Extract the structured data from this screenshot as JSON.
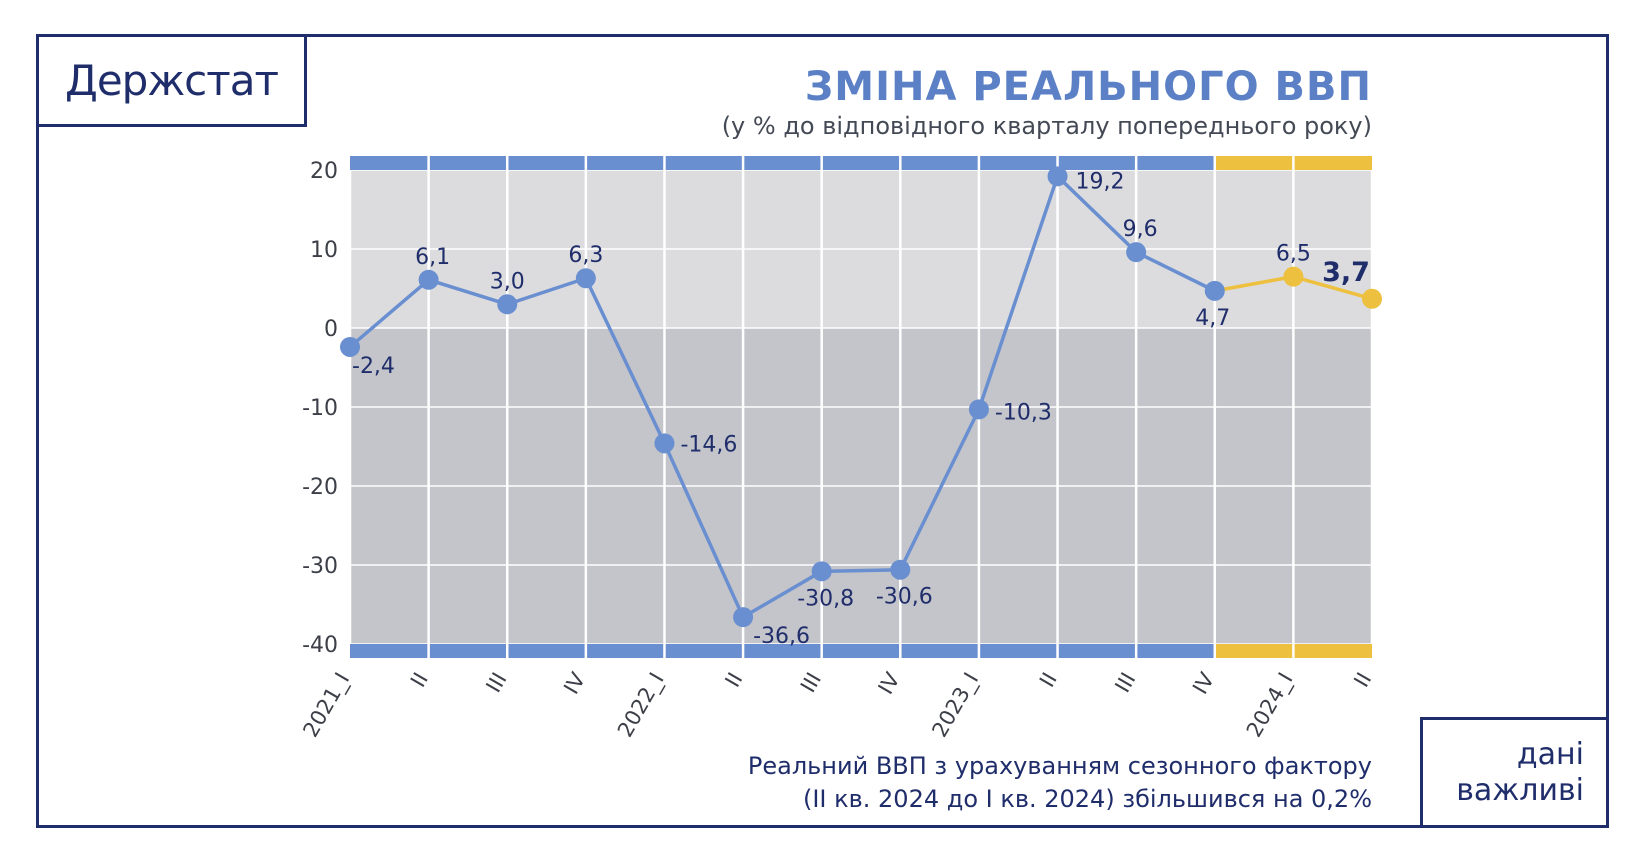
{
  "brand": {
    "logo_text": "Держстат"
  },
  "badge": {
    "line1": "дані",
    "line2": "важливі"
  },
  "chart_data": {
    "type": "line",
    "title": "ЗМІНА РЕАЛЬНОГО ВВП",
    "subtitle": "(у % до відповідного кварталу попереднього року)",
    "categories": [
      "2021_I",
      "II",
      "III",
      "IV",
      "2022_I",
      "II",
      "III",
      "IV",
      "2023_I",
      "II",
      "III",
      "IV",
      "2024_I",
      "II"
    ],
    "series": [
      {
        "values": [
          -2.4,
          6.1,
          3.0,
          6.3,
          -14.6,
          -36.6,
          -30.8,
          -30.6,
          -10.3,
          19.2,
          9.6,
          4.7,
          6.5,
          3.7
        ],
        "labels": [
          "-2,4",
          "6,1",
          "3,0",
          "6,3",
          "-14,6",
          "-36,6",
          "-30,8",
          "-30,6",
          "-10,3",
          "19,2",
          "9,6",
          "4,7",
          "6,5",
          "3,7"
        ]
      }
    ],
    "highlight_from_index": 11,
    "bold_label_index": 13,
    "ylim": [
      -40,
      20
    ],
    "yticks": [
      20,
      10,
      0,
      -10,
      -20,
      -30,
      -40
    ],
    "grid": true,
    "colors": {
      "primary": "#6a8fd0",
      "highlight": "#eec040",
      "band_blue": "#6a8fd0",
      "band_yellow": "#eec040",
      "bg_positive": "#dcdcde",
      "bg_negative": "#c4c5cb"
    }
  },
  "footnote": {
    "line1": "Реальний ВВП з урахуванням сезонного фактору",
    "line2": "(ІІ кв. 2024 до І кв. 2024) збільшився на 0,2%"
  }
}
